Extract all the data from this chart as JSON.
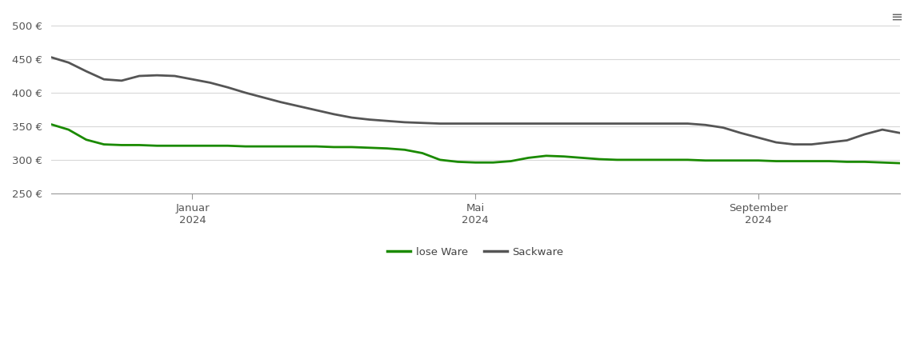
{
  "lose_ware_x": [
    0,
    1,
    2,
    3,
    4,
    5,
    6,
    7,
    8,
    9,
    10,
    11,
    12,
    13,
    14,
    15,
    16,
    17,
    18,
    19,
    20,
    21,
    22,
    23,
    24,
    25,
    26,
    27,
    28,
    29,
    30,
    31,
    32,
    33,
    34,
    35,
    36,
    37,
    38,
    39,
    40,
    41,
    42,
    43,
    44,
    45,
    46,
    47,
    48
  ],
  "lose_ware_y": [
    353,
    345,
    330,
    323,
    322,
    322,
    321,
    321,
    321,
    321,
    321,
    320,
    320,
    320,
    320,
    320,
    319,
    319,
    318,
    317,
    315,
    310,
    300,
    297,
    296,
    296,
    298,
    303,
    306,
    305,
    303,
    301,
    300,
    300,
    300,
    300,
    300,
    299,
    299,
    299,
    299,
    298,
    298,
    298,
    298,
    297,
    297,
    296,
    295
  ],
  "sackware_x": [
    0,
    1,
    2,
    3,
    4,
    5,
    6,
    7,
    8,
    9,
    10,
    11,
    12,
    13,
    14,
    15,
    16,
    17,
    18,
    19,
    20,
    21,
    22,
    23,
    24,
    25,
    26,
    27,
    28,
    29,
    30,
    31,
    32,
    33,
    34,
    35,
    36,
    37,
    38,
    39,
    40,
    41,
    42,
    43,
    44,
    45,
    46,
    47,
    48
  ],
  "sackware_y": [
    453,
    445,
    432,
    420,
    418,
    425,
    426,
    425,
    420,
    415,
    408,
    400,
    393,
    386,
    380,
    374,
    368,
    363,
    360,
    358,
    356,
    355,
    354,
    354,
    354,
    354,
    354,
    354,
    354,
    354,
    354,
    354,
    354,
    354,
    354,
    354,
    354,
    352,
    348,
    340,
    333,
    326,
    323,
    323,
    326,
    329,
    338,
    345,
    340
  ],
  "ylim": [
    250,
    510
  ],
  "yticks": [
    250,
    300,
    350,
    400,
    450,
    500
  ],
  "xlabel_ticks_pos": [
    8,
    24,
    40
  ],
  "xlabel_labels": [
    "Januar\n2024",
    "Mai\n2024",
    "September\n2024"
  ],
  "lose_ware_color": "#1a8a00",
  "sackware_color": "#555555",
  "grid_color": "#d8d8d8",
  "background_color": "#ffffff",
  "legend_lose_ware": "lose Ware",
  "legend_sackware": "Sackware",
  "line_width": 2.0,
  "xlim": [
    0,
    48
  ]
}
